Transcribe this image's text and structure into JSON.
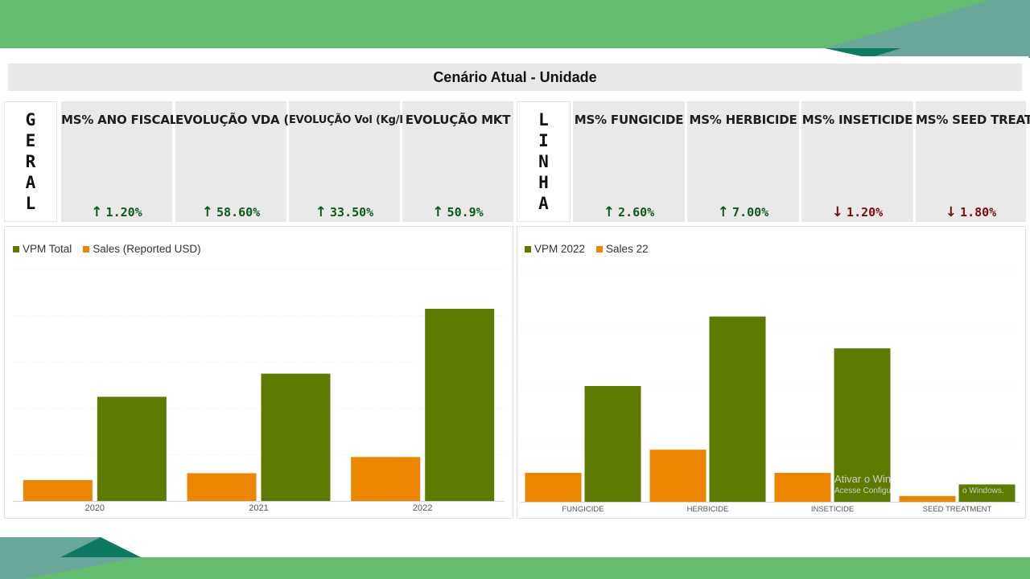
{
  "title": "Cenário Atual - Unidade",
  "geral_letters": [
    "G",
    "E",
    "R",
    "A",
    "L"
  ],
  "linha_letters": [
    "L",
    "I",
    "N",
    "H",
    "A"
  ],
  "kpis": [
    {
      "title": "MS% ANO FISCAL",
      "value": "1.20%",
      "direction": "up"
    },
    {
      "title": "EVOLUÇÃO VDA ($)",
      "value": "58.60%",
      "direction": "up"
    },
    {
      "title": "EVOLUÇÃO Vol (Kg/L)",
      "value": "33.50%",
      "direction": "up"
    },
    {
      "title": "EVOLUÇÃO MKT",
      "value": "50.9%",
      "direction": "up"
    },
    {
      "title": "MS% FUNGICIDE",
      "value": "2.60%",
      "direction": "up"
    },
    {
      "title": "MS% HERBICIDE",
      "value": "7.00%",
      "direction": "up"
    },
    {
      "title": "MS% INSETICIDE",
      "value": "1.20%",
      "direction": "down"
    },
    {
      "title": "MS% SEED TREAT.",
      "value": "1.80%",
      "direction": "down"
    }
  ],
  "colors": {
    "vpm": "#5e7a00",
    "sales": "#ec8500",
    "up": "#0c5a1a",
    "down": "#7a0c0c",
    "band": "#62bd6e",
    "teal": "#6aa79b",
    "dark_teal": "#0f7a64"
  },
  "watermark": {
    "line1": "Ativar o Win",
    "line2": "Acesse Configu",
    "line3": "o Windows."
  },
  "chart_data": [
    {
      "type": "bar",
      "categories": [
        "2020",
        "2021",
        "2022"
      ],
      "series": [
        {
          "name": "Sales (Reported USD)",
          "color": "#ec8500",
          "values": [
            9,
            12,
            19
          ]
        },
        {
          "name": "VPM Total",
          "color": "#5e7a00",
          "values": [
            45,
            55,
            83
          ]
        }
      ],
      "legend": [
        "VPM Total",
        "Sales (Reported USD)"
      ],
      "legend_placement": "top-left",
      "ylim": [
        0,
        100
      ],
      "grid": true
    },
    {
      "type": "bar",
      "categories": [
        "FUNGICIDE",
        "HERBICIDE",
        "INSETICIDE",
        "SEED TREATMENT"
      ],
      "series": [
        {
          "name": "Sales 22",
          "color": "#ec8500",
          "values": [
            10,
            18,
            10,
            2
          ]
        },
        {
          "name": "VPM 2022",
          "color": "#5e7a00",
          "values": [
            40,
            64,
            53,
            6
          ]
        }
      ],
      "legend": [
        "VPM 2022",
        "Sales 22"
      ],
      "legend_placement": "top-left",
      "ylim": [
        0,
        80
      ],
      "grid": true
    }
  ]
}
